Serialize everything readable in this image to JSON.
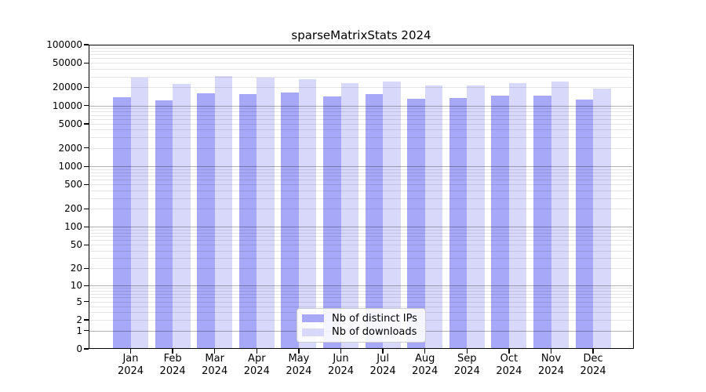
{
  "title": "sparseMatrixStats 2024",
  "chart_data": {
    "type": "bar",
    "title": "sparseMatrixStats 2024",
    "categories": [
      "Jan",
      "Feb",
      "Mar",
      "Apr",
      "May",
      "Jun",
      "Jul",
      "Aug",
      "Sep",
      "Oct",
      "Nov",
      "Dec"
    ],
    "category_year": "2024",
    "series": [
      {
        "key": "distinct-ips",
        "name": "Nb of distinct IPs",
        "color": "#a8a8f8",
        "values": [
          13700,
          12200,
          16000,
          15300,
          16400,
          14000,
          15400,
          13000,
          13300,
          14400,
          14700,
          12400
        ]
      },
      {
        "key": "downloads",
        "name": "Nb of downloads",
        "color": "#d8d8fa",
        "values": [
          28500,
          22600,
          30800,
          28500,
          26900,
          23300,
          24800,
          21200,
          21600,
          23600,
          24800,
          19200
        ]
      }
    ],
    "xlabel": "",
    "ylabel": "",
    "yscale": "log1p",
    "ylim": [
      0,
      100000
    ],
    "ytick_values": [
      0,
      1,
      2,
      5,
      10,
      20,
      50,
      100,
      200,
      500,
      1000,
      2000,
      5000,
      10000,
      20000,
      50000,
      100000
    ],
    "ytick_labels": [
      "0",
      "1",
      "2",
      "5",
      "10",
      "20",
      "50",
      "100",
      "200",
      "500",
      "1000",
      "2000",
      "5000",
      "10000",
      "20000",
      "50000",
      "100000"
    ],
    "grid": "horizontal major and minor log gridlines drawn over bars",
    "legend_position": "inside bottom center"
  },
  "colors": {
    "background": "#ffffff",
    "axis": "#000000",
    "bar_distinct_ips": "#a8a8f8",
    "bar_downloads": "#d8d8fa",
    "major_grid": "rgba(0,0,0,0.30)",
    "minor_grid": "rgba(0,0,0,0.10)",
    "legend_border": "#cccccc"
  }
}
